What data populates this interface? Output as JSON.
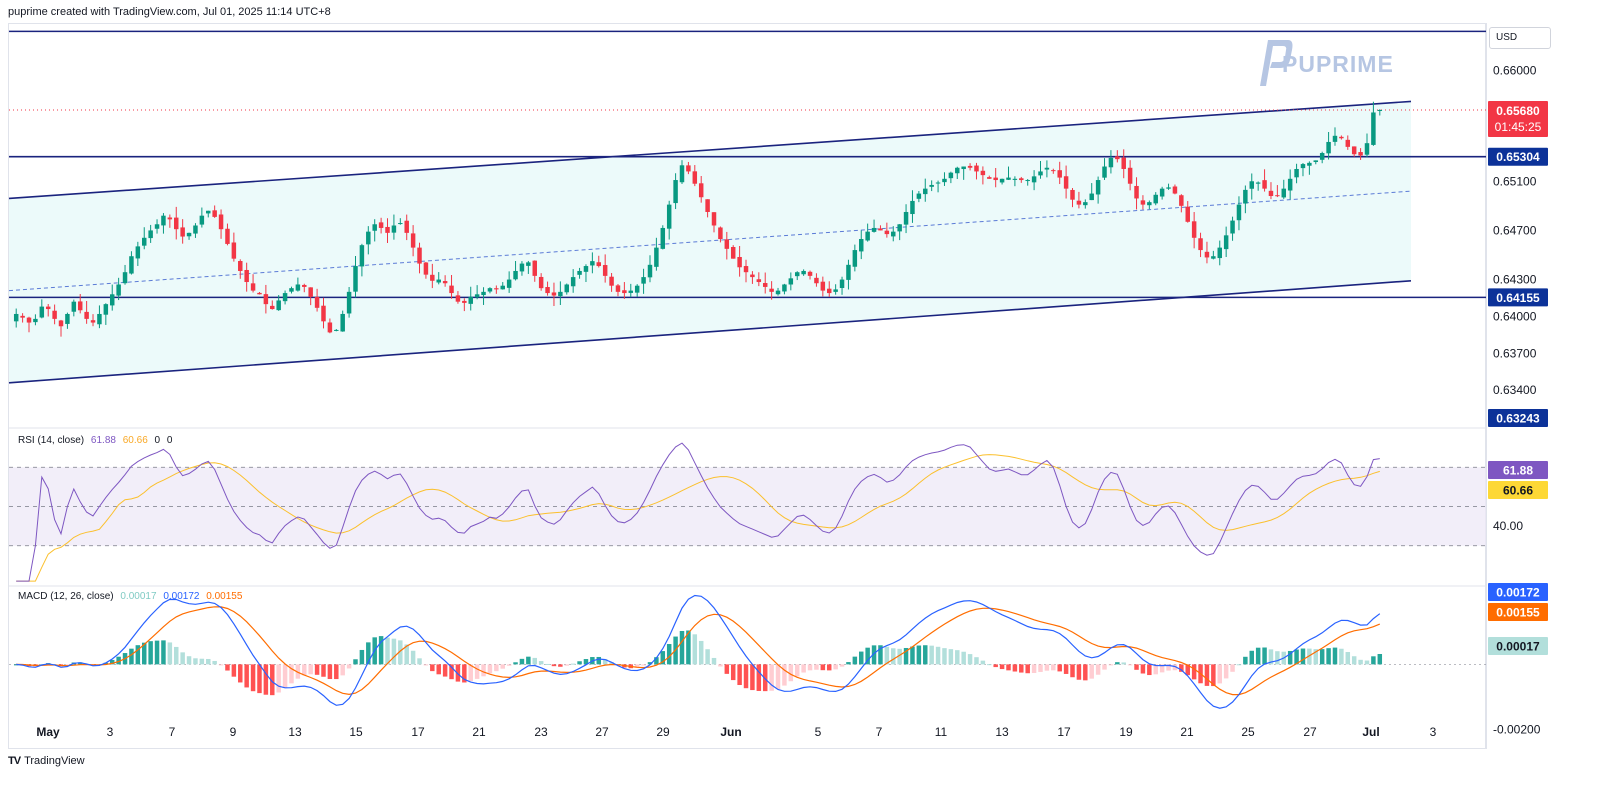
{
  "header": {
    "caption": "puprime created with TradingView.com, Jul 01, 2025 11:14 UTC+8"
  },
  "price_scale": {
    "currency": "USD"
  },
  "logo": {
    "text": "PUPRIME"
  },
  "footer": {
    "brand": "TradingView"
  },
  "colors": {
    "up": "#089981",
    "down": "#f23645",
    "channel_line": "#1a237e",
    "channel_fill": "#e0f7f7",
    "rsi_line": "#7e57c2",
    "rsi_ma": "#fbc02d",
    "rsi_band": "#ede7f6",
    "macd_line": "#2962ff",
    "signal_line": "#ff6d00",
    "current_price_bg": "#f23645",
    "level_bg": "#0c3299"
  },
  "chart_data": [
    {
      "type": "candlestick",
      "pane": "price",
      "symbol_quote": "USD",
      "ylim": [
        0.631,
        0.6638
      ],
      "y_ticks": [
        "0.66000",
        "0.65100",
        "0.64700",
        "0.64300",
        "0.64000",
        "0.63700",
        "0.63400"
      ],
      "x_ticks": [
        "May",
        "3",
        "7",
        "9",
        "13",
        "15",
        "17",
        "21",
        "23",
        "27",
        "29",
        "Jun",
        "5",
        "7",
        "11",
        "13",
        "17",
        "19",
        "21",
        "25",
        "27",
        "Jul",
        "3"
      ],
      "current_price": "0.65680",
      "countdown": "01:45:25",
      "horizontal_levels": [
        {
          "value": 0.653,
          "label": "0.65304"
        },
        {
          "value": 0.64155,
          "label": "0.64155"
        },
        {
          "value": 0.6324,
          "label": "0.63243"
        }
      ],
      "top_line": 0.6632,
      "channel": {
        "upper": [
          0.6496,
          0.6575
        ],
        "lower": [
          0.6346,
          0.6429
        ],
        "mid": [
          0.6421,
          0.6502
        ]
      },
      "closes": [
        0.6402,
        0.6399,
        0.6395,
        0.6398,
        0.6408,
        0.6406,
        0.6398,
        0.6392,
        0.6402,
        0.6412,
        0.6405,
        0.6398,
        0.6395,
        0.6402,
        0.641,
        0.6418,
        0.6426,
        0.6436,
        0.6449,
        0.6457,
        0.6464,
        0.647,
        0.6475,
        0.6482,
        0.6479,
        0.6471,
        0.6465,
        0.6468,
        0.6474,
        0.6482,
        0.6486,
        0.6481,
        0.6471,
        0.6459,
        0.6447,
        0.6437,
        0.6428,
        0.6421,
        0.6418,
        0.641,
        0.6406,
        0.6413,
        0.6419,
        0.6423,
        0.6426,
        0.6424,
        0.6416,
        0.6407,
        0.6396,
        0.6387,
        0.6389,
        0.6402,
        0.642,
        0.6441,
        0.6458,
        0.6469,
        0.6475,
        0.6472,
        0.6468,
        0.6474,
        0.6476,
        0.6468,
        0.6456,
        0.6443,
        0.6434,
        0.6429,
        0.643,
        0.6427,
        0.6419,
        0.6412,
        0.6411,
        0.6416,
        0.6418,
        0.642,
        0.6423,
        0.6422,
        0.6425,
        0.643,
        0.6437,
        0.6443,
        0.6444,
        0.6433,
        0.6423,
        0.6419,
        0.6417,
        0.642,
        0.6426,
        0.6432,
        0.6437,
        0.6441,
        0.6445,
        0.6441,
        0.6433,
        0.6425,
        0.642,
        0.6419,
        0.6421,
        0.6425,
        0.6432,
        0.6442,
        0.6456,
        0.6472,
        0.6491,
        0.6511,
        0.6523,
        0.6518,
        0.6508,
        0.6497,
        0.6485,
        0.6474,
        0.6463,
        0.6455,
        0.6447,
        0.644,
        0.6436,
        0.6432,
        0.6428,
        0.6424,
        0.642,
        0.6421,
        0.6426,
        0.6431,
        0.6436,
        0.6437,
        0.6433,
        0.6427,
        0.6421,
        0.6419,
        0.6422,
        0.643,
        0.6442,
        0.6454,
        0.6463,
        0.6469,
        0.6472,
        0.647,
        0.6467,
        0.6469,
        0.6475,
        0.6485,
        0.6494,
        0.65,
        0.6504,
        0.6507,
        0.6509,
        0.6512,
        0.6517,
        0.6521,
        0.6522,
        0.6521,
        0.6518,
        0.6515,
        0.6512,
        0.6511,
        0.6512,
        0.6513,
        0.6512,
        0.6511,
        0.6511,
        0.6514,
        0.6518,
        0.6521,
        0.6519,
        0.6513,
        0.6504,
        0.6495,
        0.6491,
        0.6493,
        0.65,
        0.6511,
        0.6522,
        0.6529,
        0.6528,
        0.652,
        0.6508,
        0.6496,
        0.6491,
        0.6493,
        0.6499,
        0.6504,
        0.6505,
        0.65,
        0.649,
        0.6477,
        0.6464,
        0.6454,
        0.6448,
        0.6449,
        0.6456,
        0.6466,
        0.6478,
        0.6491,
        0.6503,
        0.651,
        0.6509,
        0.6504,
        0.6498,
        0.6498,
        0.6504,
        0.6512,
        0.652,
        0.6524,
        0.6525,
        0.6527,
        0.6533,
        0.6542,
        0.6547,
        0.6545,
        0.6538,
        0.6532,
        0.6531,
        0.6541,
        0.6566,
        0.6568
      ],
      "note": "Closes approximated from the visible candle bodies; one value per candle in chronological order."
    },
    {
      "type": "line",
      "pane": "rsi",
      "legend": {
        "name": "RSI (14, close)",
        "values": [
          "61.88",
          "60.66",
          "0",
          "0"
        ]
      },
      "ylim": [
        10,
        90
      ],
      "bands": [
        70,
        50,
        30
      ],
      "y_ticks": [
        "40.00"
      ],
      "current": {
        "rsi": "61.88",
        "ma": "60.66"
      }
    },
    {
      "type": "histogram+lines",
      "pane": "macd",
      "legend": {
        "name": "MACD (12, 26, close)",
        "values": [
          "0.00017",
          "0.00172",
          "0.00155"
        ]
      },
      "ylim": [
        -0.0025,
        0.0024
      ],
      "y_ticks": [
        "-0.00200"
      ],
      "current": {
        "hist": "0.00017",
        "macd": "0.00172",
        "signal": "0.00155"
      }
    }
  ]
}
